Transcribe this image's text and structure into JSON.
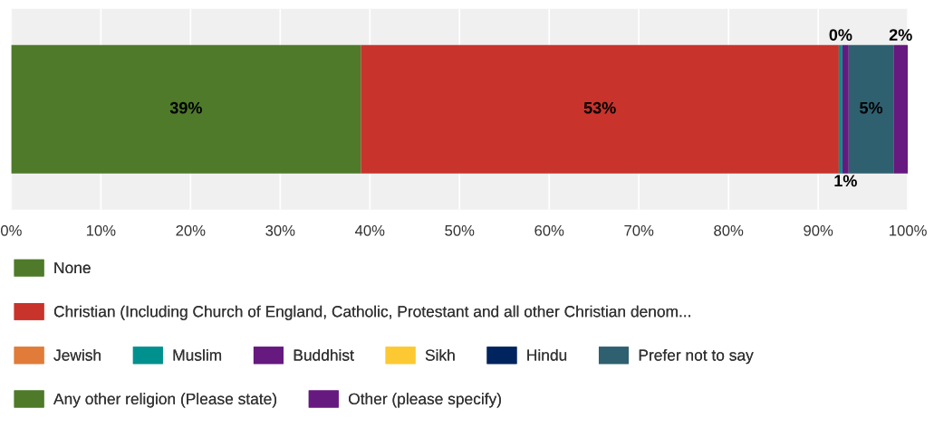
{
  "chart_data": {
    "type": "bar",
    "orientation": "horizontal",
    "stacked": true,
    "categories": [
      null
    ],
    "series": [
      {
        "name": "None",
        "color": "#4e7a2a",
        "values": [
          39
        ],
        "value_labels": [
          "39%"
        ]
      },
      {
        "name": "Christian (Including Church of England, Catholic, Protestant and all other Christian denom...",
        "color": "#c8332c",
        "values": [
          53.3
        ],
        "value_labels": [
          "53%"
        ]
      },
      {
        "name": "Jewish",
        "color": "#e07b39",
        "values": [
          0
        ],
        "value_labels": [
          null
        ]
      },
      {
        "name": "Muslim",
        "color": "#00918f",
        "values": [
          0.4
        ],
        "value_labels": [
          "0%"
        ]
      },
      {
        "name": "Buddhist",
        "color": "#66197f",
        "values": [
          0.7
        ],
        "value_labels": [
          "1%"
        ]
      },
      {
        "name": "Sikh",
        "color": "#fcc932",
        "values": [
          0
        ],
        "value_labels": [
          null
        ]
      },
      {
        "name": "Hindu",
        "color": "#00245e",
        "values": [
          0
        ],
        "value_labels": [
          null
        ]
      },
      {
        "name": "Prefer not to say",
        "color": "#2e6070",
        "values": [
          5
        ],
        "value_labels": [
          "5%"
        ]
      },
      {
        "name": "Any other religion (Please state)",
        "color": "#4e7a2a",
        "values": [
          0
        ],
        "value_labels": [
          null
        ]
      },
      {
        "name": "Other (please specify)",
        "color": "#66197f",
        "values": [
          1.6
        ],
        "value_labels": [
          "2%"
        ]
      }
    ],
    "xlim": [
      0,
      100
    ],
    "xticks": [
      {
        "value": 0,
        "label": "0%"
      },
      {
        "value": 10,
        "label": "10%"
      },
      {
        "value": 20,
        "label": "20%"
      },
      {
        "value": 30,
        "label": "30%"
      },
      {
        "value": 40,
        "label": "40%"
      },
      {
        "value": 50,
        "label": "50%"
      },
      {
        "value": 60,
        "label": "60%"
      },
      {
        "value": 70,
        "label": "70%"
      },
      {
        "value": 80,
        "label": "80%"
      },
      {
        "value": 90,
        "label": "90%"
      },
      {
        "value": 100,
        "label": "100%"
      }
    ],
    "grid": "x",
    "legend": "bottom"
  }
}
